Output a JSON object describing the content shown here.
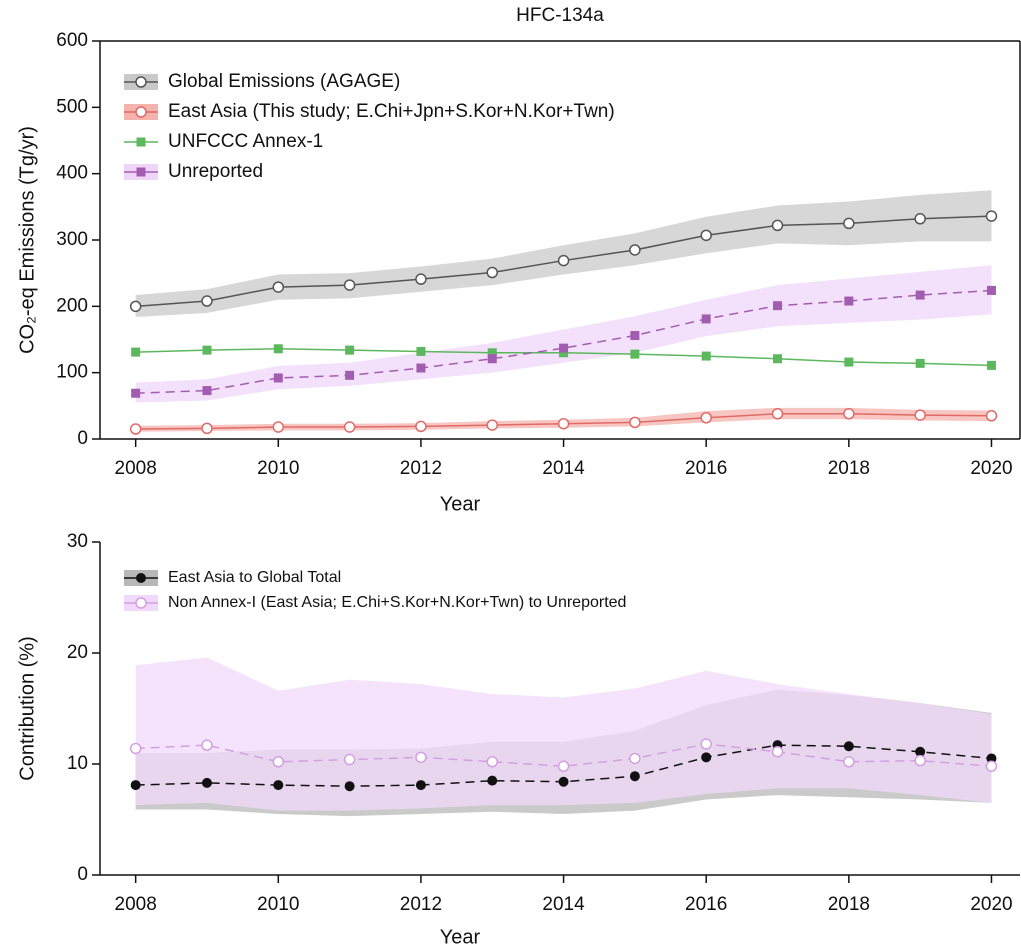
{
  "chart_data": [
    {
      "type": "line",
      "title": "HFC-134a",
      "ylabel": "CO₂-eq Emissions (Tg/yr)",
      "xlabel": "Year",
      "x": [
        2008,
        2009,
        2010,
        2011,
        2012,
        2013,
        2014,
        2015,
        2016,
        2017,
        2018,
        2019,
        2020
      ],
      "xlim": [
        2007.5,
        2020.4
      ],
      "xticks": [
        2008,
        2010,
        2012,
        2014,
        2016,
        2018,
        2020
      ],
      "ylim": [
        0,
        600
      ],
      "yticks": [
        0,
        100,
        200,
        300,
        400,
        500,
        600
      ],
      "legend": "upper left",
      "series": [
        {
          "name": "Global Emissions (AGAGE)",
          "color": "#555555",
          "band_color": "#c9c9c9",
          "marker": "circle-open",
          "linestyle": "solid",
          "values": [
            200,
            208,
            229,
            232,
            241,
            251,
            269,
            285,
            307,
            322,
            325,
            332,
            336
          ],
          "lower": [
            184,
            190,
            210,
            212,
            222,
            232,
            248,
            262,
            280,
            295,
            292,
            298,
            298
          ],
          "upper": [
            217,
            226,
            248,
            250,
            260,
            272,
            292,
            310,
            335,
            352,
            358,
            368,
            375
          ]
        },
        {
          "name": "East Asia (This study; E.Chi+Jpn+S.Kor+N.Kor+Twn)",
          "color": "#e06a66",
          "band_color": "#f5b3ad",
          "marker": "circle-open",
          "linestyle": "solid",
          "values": [
            15,
            16,
            18,
            18,
            19,
            21,
            23,
            25,
            32,
            38,
            38,
            36,
            35
          ],
          "lower": [
            11,
            12,
            13,
            13,
            14,
            16,
            17,
            19,
            25,
            30,
            30,
            28,
            27
          ],
          "upper": [
            20,
            21,
            23,
            23,
            24,
            27,
            29,
            32,
            42,
            47,
            47,
            44,
            43
          ]
        },
        {
          "name": "UNFCCC Annex-1",
          "color": "#5cb85c",
          "marker": "square",
          "linestyle": "solid",
          "values": [
            131,
            134,
            136,
            134,
            132,
            130,
            130,
            128,
            125,
            121,
            116,
            114,
            111
          ]
        },
        {
          "name": "Unreported",
          "color": "#a35db0",
          "band_color": "#efd6f8",
          "marker": "square",
          "linestyle": "dashed",
          "values": [
            69,
            73,
            92,
            96,
            107,
            121,
            137,
            156,
            181,
            201,
            208,
            217,
            224
          ],
          "lower": [
            55,
            58,
            75,
            80,
            90,
            100,
            115,
            130,
            155,
            170,
            175,
            180,
            188
          ],
          "upper": [
            85,
            90,
            110,
            115,
            130,
            145,
            165,
            185,
            210,
            232,
            242,
            252,
            262
          ]
        }
      ]
    },
    {
      "type": "line",
      "ylabel": "Contribution (%)",
      "xlabel": "Year",
      "x": [
        2008,
        2009,
        2010,
        2011,
        2012,
        2013,
        2014,
        2015,
        2016,
        2017,
        2018,
        2019,
        2020
      ],
      "xlim": [
        2007.5,
        2020.4
      ],
      "xticks": [
        2008,
        2010,
        2012,
        2014,
        2016,
        2018,
        2020
      ],
      "ylim": [
        0,
        30
      ],
      "yticks": [
        0,
        10,
        20,
        30
      ],
      "legend": "upper left",
      "series": [
        {
          "name": "East Asia to Global Total",
          "color": "#111111",
          "band_color": "#b8b8b8",
          "marker": "circle",
          "linestyle": "dashed",
          "values": [
            8.1,
            8.3,
            8.1,
            8.0,
            8.1,
            8.5,
            8.4,
            8.9,
            10.6,
            11.7,
            11.6,
            11.1,
            10.5
          ],
          "lower": [
            5.9,
            5.9,
            5.5,
            5.3,
            5.5,
            5.7,
            5.5,
            5.8,
            6.8,
            7.2,
            7.0,
            6.8,
            6.5
          ],
          "upper": [
            11.0,
            11.0,
            11.3,
            11.3,
            11.4,
            12.0,
            12.0,
            13.0,
            15.3,
            16.7,
            16.2,
            15.5,
            14.6
          ]
        },
        {
          "name": "Non Annex-I (East Asia; E.Chi+S.Kor+N.Kor+Twn) to Unreported",
          "color": "#d59ee3",
          "band_color": "#f1d9fb",
          "marker": "circle-open",
          "linestyle": "dashed",
          "values": [
            11.4,
            11.7,
            10.2,
            10.4,
            10.6,
            10.2,
            9.8,
            10.5,
            11.8,
            11.1,
            10.2,
            10.3,
            9.8
          ],
          "lower": [
            6.3,
            6.5,
            5.8,
            5.8,
            6.0,
            6.3,
            6.3,
            6.5,
            7.3,
            7.8,
            7.8,
            7.2,
            6.5
          ],
          "upper": [
            18.9,
            19.6,
            16.6,
            17.6,
            17.2,
            16.3,
            16.0,
            16.8,
            18.4,
            17.2,
            16.3,
            15.5,
            14.5
          ]
        }
      ]
    }
  ]
}
